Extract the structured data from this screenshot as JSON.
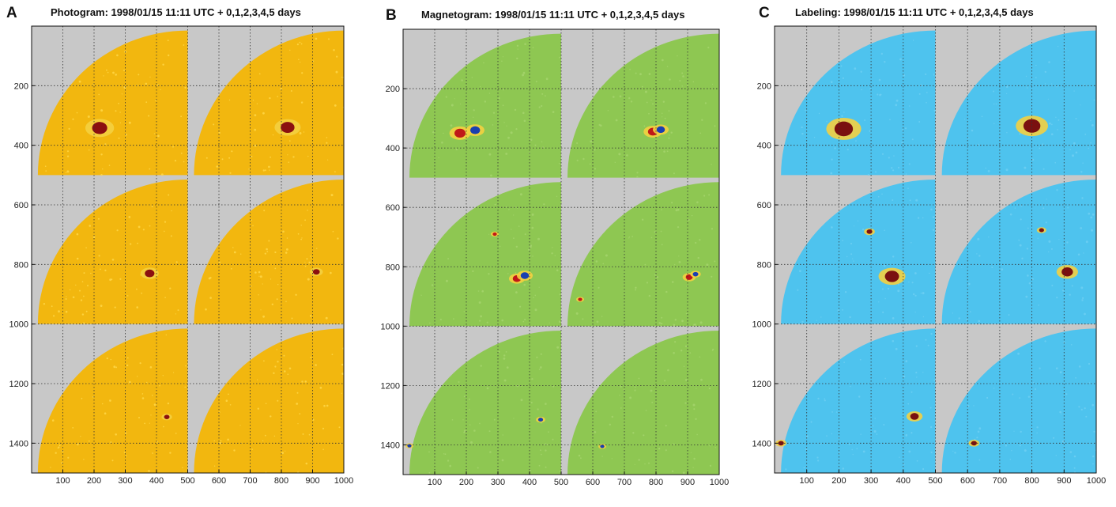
{
  "figure": {
    "background": "#ffffff",
    "axis_background": "#c8c8c8"
  },
  "chart_data": [
    {
      "type": "heatmap",
      "panel_label": "A",
      "title": "Photogram: 1998/01/15 11:11 UTC + 0,1,2,3,4,5 days",
      "xlim": [
        0,
        1000
      ],
      "ylim": [
        1500,
        0
      ],
      "x_ticks": [
        100,
        200,
        300,
        400,
        500,
        600,
        700,
        800,
        900,
        1000
      ],
      "y_ticks": [
        200,
        400,
        600,
        800,
        1000,
        1200,
        1400
      ],
      "grid": true,
      "layout": "3 rows x 2 columns of solar quadrant images, 500 x 500 units each",
      "disk_color": "#f2b70f",
      "disk_speckle": "#ffd84a",
      "features": [
        {
          "x": 218,
          "y": 342,
          "size": 22,
          "color": "#8b1010"
        },
        {
          "x": 820,
          "y": 340,
          "size": 20,
          "color": "#8b1010"
        },
        {
          "x": 378,
          "y": 830,
          "size": 14,
          "color": "#8b1010"
        },
        {
          "x": 912,
          "y": 825,
          "size": 10,
          "color": "#8b1010"
        },
        {
          "x": 433,
          "y": 1312,
          "size": 8,
          "color": "#8b1010"
        }
      ]
    },
    {
      "type": "heatmap",
      "panel_label": "B",
      "title": "Magnetogram: 1998/01/15 11:11 UTC + 0,1,2,3,4,5 days",
      "xlim": [
        0,
        1000
      ],
      "ylim": [
        1500,
        0
      ],
      "x_ticks": [
        100,
        200,
        300,
        400,
        500,
        600,
        700,
        800,
        900,
        1000
      ],
      "y_ticks": [
        200,
        400,
        600,
        800,
        1000,
        1200,
        1400
      ],
      "grid": true,
      "layout": "3 rows x 2 columns of solar quadrant images, 500 x 500 units each",
      "disk_color": "#8ec752",
      "disk_speckle": "#a6d46e",
      "features": [
        {
          "x": 180,
          "y": 350,
          "size": 16,
          "color": "#c01818"
        },
        {
          "x": 228,
          "y": 340,
          "size": 14,
          "color": "#1a3fb0"
        },
        {
          "x": 790,
          "y": 345,
          "size": 14,
          "color": "#c01818"
        },
        {
          "x": 815,
          "y": 338,
          "size": 12,
          "color": "#1a3fb0"
        },
        {
          "x": 290,
          "y": 690,
          "size": 6,
          "color": "#c01818"
        },
        {
          "x": 360,
          "y": 840,
          "size": 12,
          "color": "#c01818"
        },
        {
          "x": 385,
          "y": 830,
          "size": 12,
          "color": "#1a3fb0"
        },
        {
          "x": 905,
          "y": 835,
          "size": 10,
          "color": "#c01818"
        },
        {
          "x": 925,
          "y": 825,
          "size": 8,
          "color": "#1a3fb0"
        },
        {
          "x": 560,
          "y": 910,
          "size": 6,
          "color": "#c01818"
        },
        {
          "x": 435,
          "y": 1315,
          "size": 7,
          "color": "#1a3fb0"
        },
        {
          "x": 630,
          "y": 1405,
          "size": 6,
          "color": "#1a3fb0"
        },
        {
          "x": 20,
          "y": 1403,
          "size": 6,
          "color": "#1a3fb0"
        }
      ]
    },
    {
      "type": "heatmap",
      "panel_label": "C",
      "title": "Labeling: 1998/01/15 11:11 UTC + 0,1,2,3,4,5 days",
      "xlim": [
        0,
        1000
      ],
      "ylim": [
        1500,
        0
      ],
      "x_ticks": [
        100,
        200,
        300,
        400,
        500,
        600,
        700,
        800,
        900,
        1000
      ],
      "y_ticks": [
        200,
        400,
        600,
        800,
        1000,
        1200,
        1400
      ],
      "grid": true,
      "layout": "3 rows x 2 columns of solar quadrant images, 500 x 500 units each",
      "disk_color": "#4ec3ee",
      "disk_speckle": "#6fd0f2",
      "features": [
        {
          "x": 215,
          "y": 345,
          "size": 26,
          "color": "#7a1010"
        },
        {
          "x": 800,
          "y": 335,
          "size": 24,
          "color": "#7a1010"
        },
        {
          "x": 295,
          "y": 690,
          "size": 8,
          "color": "#7a1010"
        },
        {
          "x": 365,
          "y": 840,
          "size": 20,
          "color": "#7a1010"
        },
        {
          "x": 910,
          "y": 825,
          "size": 16,
          "color": "#7a1010"
        },
        {
          "x": 830,
          "y": 685,
          "size": 7,
          "color": "#7a1010"
        },
        {
          "x": 435,
          "y": 1310,
          "size": 12,
          "color": "#7a1010"
        },
        {
          "x": 620,
          "y": 1400,
          "size": 8,
          "color": "#7a1010"
        },
        {
          "x": 20,
          "y": 1400,
          "size": 8,
          "color": "#7a1010"
        }
      ]
    }
  ]
}
